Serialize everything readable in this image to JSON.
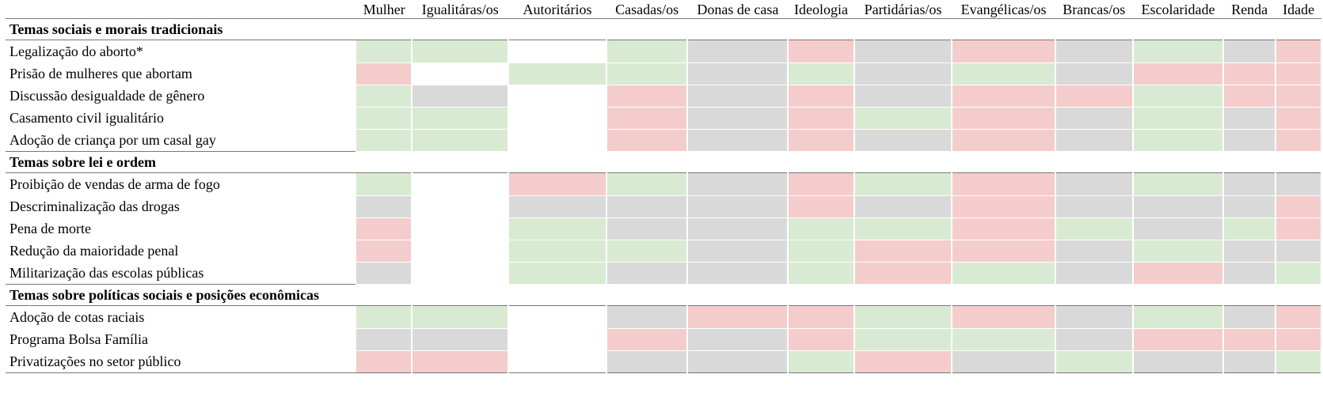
{
  "table": {
    "header_first": "",
    "columns": [
      "Mulher",
      "Igualitáras/os",
      "Autoritários",
      "Casadas/os",
      "Donas de casa",
      "Ideologia",
      "Partidárias/os",
      "Evangélicas/os",
      "Brancas/os",
      "Escolaridade",
      "Renda",
      "Idade"
    ],
    "legend_colors": {
      "g": "#d9ead3",
      "r": "#f4cccc",
      "y": "#d9d9d9",
      "w": "#ffffff"
    },
    "sections": [
      {
        "title": "Temas sociais e morais tradicionais",
        "rows": [
          {
            "label": "Legalização do aborto*",
            "cells": [
              "g",
              "g",
              "w",
              "g",
              "y",
              "r",
              "y",
              "r",
              "y",
              "g",
              "y",
              "r"
            ]
          },
          {
            "label": "Prisão de mulheres que abortam",
            "cells": [
              "r",
              "w",
              "g",
              "g",
              "y",
              "g",
              "y",
              "g",
              "y",
              "r",
              "r",
              "r"
            ]
          },
          {
            "label": "Discussão desigualdade de gênero",
            "cells": [
              "g",
              "y",
              "w",
              "r",
              "y",
              "r",
              "y",
              "r",
              "r",
              "g",
              "r",
              "r"
            ]
          },
          {
            "label": "Casamento civil igualitário",
            "cells": [
              "g",
              "g",
              "w",
              "r",
              "y",
              "r",
              "g",
              "r",
              "y",
              "g",
              "y",
              "r"
            ]
          },
          {
            "label": "Adoção de criança por um casal gay",
            "cells": [
              "g",
              "g",
              "w",
              "r",
              "y",
              "r",
              "y",
              "r",
              "y",
              "g",
              "y",
              "r"
            ]
          }
        ]
      },
      {
        "title": "Temas sobre lei e ordem",
        "rows": [
          {
            "label": "Proibição de vendas de arma de fogo",
            "cells": [
              "g",
              "w",
              "r",
              "g",
              "y",
              "r",
              "g",
              "r",
              "y",
              "g",
              "y",
              "y"
            ]
          },
          {
            "label": "Descriminalização das drogas",
            "cells": [
              "y",
              "w",
              "y",
              "y",
              "y",
              "r",
              "y",
              "r",
              "y",
              "y",
              "y",
              "r"
            ]
          },
          {
            "label": "Pena de morte",
            "cells": [
              "r",
              "w",
              "g",
              "y",
              "y",
              "g",
              "g",
              "r",
              "g",
              "y",
              "g",
              "r"
            ]
          },
          {
            "label": "Redução da maioridade penal",
            "cells": [
              "r",
              "w",
              "g",
              "g",
              "y",
              "g",
              "r",
              "r",
              "y",
              "g",
              "y",
              "y"
            ]
          },
          {
            "label": "Militarização das escolas públicas",
            "cells": [
              "y",
              "w",
              "g",
              "y",
              "y",
              "g",
              "r",
              "g",
              "y",
              "r",
              "y",
              "g"
            ]
          }
        ]
      },
      {
        "title": "Temas sobre políticas sociais e posições econômicas",
        "rows": [
          {
            "label": "Adoção de cotas raciais",
            "cells": [
              "g",
              "g",
              "w",
              "y",
              "r",
              "r",
              "g",
              "r",
              "y",
              "g",
              "y",
              "r"
            ]
          },
          {
            "label": "Programa Bolsa Família",
            "cells": [
              "y",
              "y",
              "w",
              "r",
              "y",
              "r",
              "g",
              "g",
              "y",
              "r",
              "r",
              "r"
            ]
          },
          {
            "label": "Privatizações no setor público",
            "cells": [
              "r",
              "r",
              "w",
              "y",
              "y",
              "g",
              "r",
              "y",
              "g",
              "y",
              "y",
              "g"
            ]
          }
        ]
      }
    ]
  }
}
